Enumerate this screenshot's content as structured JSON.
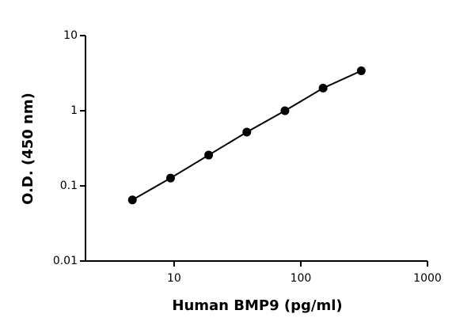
{
  "chart_data": {
    "type": "scatter",
    "x_label": "Human BMP9 (pg/ml)",
    "y_label": "O.D. (450 nm)",
    "x": [
      4.69,
      9.38,
      18.75,
      37.5,
      75,
      150,
      300
    ],
    "values": [
      0.065,
      0.127,
      0.257,
      0.52,
      1.0,
      2.0,
      3.4
    ],
    "color": "#000000",
    "xscale": "log",
    "yscale": "log",
    "xlim": [
      2,
      1000
    ],
    "ylim": [
      0.01,
      10
    ],
    "xticks": [
      10,
      100,
      1000
    ],
    "yticks": [
      0.01,
      0.1,
      1,
      10
    ],
    "connect": true
  }
}
